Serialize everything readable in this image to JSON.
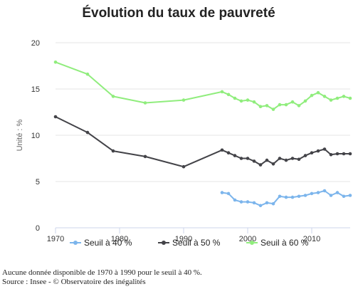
{
  "chart_data": {
    "type": "line",
    "title": "Évolution du taux de pauvreté",
    "ylabel": "Unité : %",
    "xlabel": "",
    "xlim": [
      1970,
      2016
    ],
    "ylim": [
      0,
      20
    ],
    "x_ticks": [
      "1970",
      "1980",
      "1990",
      "2000",
      "2010"
    ],
    "y_ticks": [
      "0",
      "5",
      "10",
      "15",
      "20"
    ],
    "grid": "horizontal",
    "legend_position": "bottom",
    "series": [
      {
        "name": "Seuil à  40 %",
        "color": "#7cb5ec",
        "x": [
          1996,
          1997,
          1998,
          1999,
          2000,
          2001,
          2002,
          2003,
          2004,
          2005,
          2006,
          2007,
          2008,
          2009,
          2010,
          2011,
          2012,
          2013,
          2014,
          2015,
          2016
        ],
        "values": [
          3.8,
          3.7,
          3.0,
          2.8,
          2.8,
          2.7,
          2.4,
          2.7,
          2.6,
          3.4,
          3.3,
          3.3,
          3.4,
          3.5,
          3.7,
          3.8,
          4.0,
          3.5,
          3.8,
          3.4,
          3.5
        ]
      },
      {
        "name": "Seuil à 50 %",
        "color": "#434348",
        "x": [
          1970,
          1975,
          1979,
          1984,
          1990,
          1996,
          1997,
          1998,
          1999,
          2000,
          2001,
          2002,
          2003,
          2004,
          2005,
          2006,
          2007,
          2008,
          2009,
          2010,
          2011,
          2012,
          2013,
          2014,
          2015,
          2016
        ],
        "values": [
          12.0,
          10.3,
          8.3,
          7.7,
          6.6,
          8.4,
          8.1,
          7.8,
          7.5,
          7.5,
          7.2,
          6.8,
          7.3,
          6.9,
          7.5,
          7.3,
          7.5,
          7.4,
          7.8,
          8.1,
          8.3,
          8.5,
          7.9,
          8.0,
          8.0,
          8.0
        ]
      },
      {
        "name": "Seuil à 60 %",
        "color": "#90ed7d",
        "x": [
          1970,
          1975,
          1979,
          1984,
          1990,
          1996,
          1997,
          1998,
          1999,
          2000,
          2001,
          2002,
          2003,
          2004,
          2005,
          2006,
          2007,
          2008,
          2009,
          2010,
          2011,
          2012,
          2013,
          2014,
          2015,
          2016
        ],
        "values": [
          17.9,
          16.6,
          14.2,
          13.5,
          13.8,
          14.7,
          14.4,
          14.0,
          13.7,
          13.8,
          13.6,
          13.1,
          13.2,
          12.8,
          13.3,
          13.3,
          13.6,
          13.2,
          13.7,
          14.3,
          14.6,
          14.2,
          13.8,
          14.0,
          14.2,
          14.0
        ]
      }
    ],
    "notes": [
      "Aucune donnée disponible de 1970 à 1990 pour le seuil à 40 %.",
      "Source : Insee - © Observatoire des inégalités"
    ]
  }
}
